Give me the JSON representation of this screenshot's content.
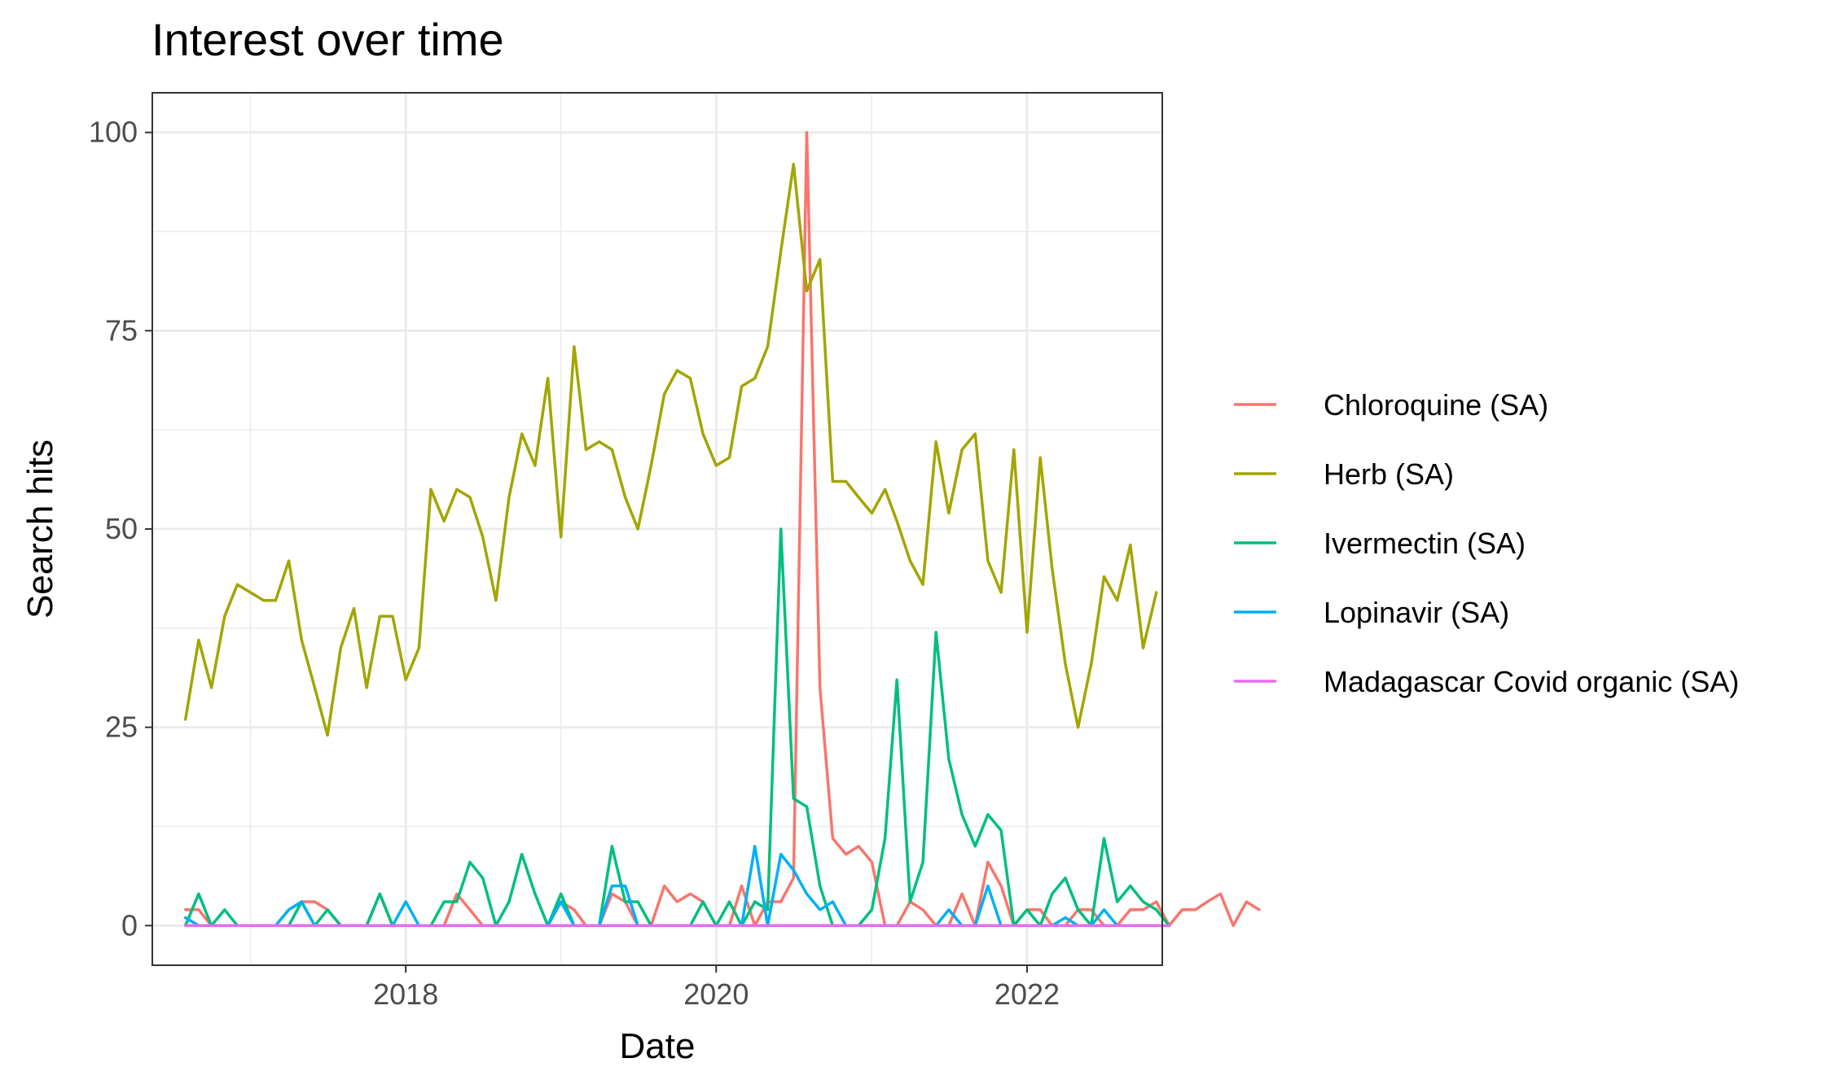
{
  "chart_data": {
    "type": "line",
    "title": "Interest over time",
    "xlabel": "Date",
    "ylabel": "Search hits",
    "xlim": [
      "2016-05-15",
      "2022-11-15"
    ],
    "ylim": [
      -5,
      105
    ],
    "x_ticks": [
      "2018-01-01",
      "2020-01-01",
      "2022-01-01"
    ],
    "x_tick_labels": [
      "2018",
      "2020",
      "2022"
    ],
    "y_ticks": [
      0,
      25,
      50,
      75,
      100
    ],
    "y_tick_labels": [
      "0",
      "25",
      "50",
      "75",
      "100"
    ],
    "grid": true,
    "legend_position": "right",
    "x_start": "2016-08",
    "x_step": "month",
    "series": [
      {
        "name": "Chloroquine (SA)",
        "color": "#F8766D",
        "values": [
          2,
          2,
          0,
          0,
          0,
          0,
          0,
          0,
          2,
          3,
          3,
          2,
          0,
          0,
          0,
          4,
          0,
          0,
          0,
          0,
          0,
          4,
          2,
          0,
          0,
          0,
          0,
          0,
          0,
          3,
          2,
          0,
          0,
          4,
          3,
          0,
          0,
          5,
          3,
          4,
          3,
          0,
          0,
          5,
          0,
          3,
          3,
          6,
          100,
          30,
          11,
          9,
          10,
          8,
          0,
          0,
          3,
          2,
          0,
          0,
          4,
          0,
          8,
          5,
          0,
          2,
          2,
          0,
          0,
          2,
          2,
          0,
          0,
          2,
          2,
          3,
          0,
          2,
          2,
          3,
          4,
          0,
          3,
          2
        ]
      },
      {
        "name": "Herb (SA)",
        "color": "#A3A500",
        "values": [
          26,
          36,
          30,
          39,
          43,
          42,
          41,
          41,
          46,
          36,
          30,
          24,
          35,
          40,
          30,
          39,
          39,
          31,
          35,
          55,
          51,
          55,
          54,
          49,
          41,
          54,
          62,
          58,
          69,
          49,
          73,
          60,
          61,
          60,
          54,
          50,
          58,
          67,
          70,
          69,
          62,
          58,
          59,
          68,
          69,
          73,
          85,
          96,
          80,
          84,
          56,
          56,
          54,
          52,
          55,
          51,
          46,
          43,
          61,
          52,
          60,
          62,
          46,
          42,
          60,
          37,
          59,
          45,
          33,
          25,
          33,
          44,
          41,
          48,
          35,
          42
        ]
      },
      {
        "name": "Ivermectin (SA)",
        "color": "#00BF7D",
        "values": [
          0,
          4,
          0,
          2,
          0,
          0,
          0,
          0,
          0,
          3,
          0,
          2,
          0,
          0,
          0,
          4,
          0,
          0,
          0,
          0,
          3,
          3,
          8,
          6,
          0,
          3,
          9,
          4,
          0,
          4,
          0,
          0,
          0,
          10,
          3,
          3,
          0,
          0,
          0,
          0,
          3,
          0,
          3,
          0,
          3,
          2,
          50,
          16,
          15,
          5,
          0,
          0,
          0,
          2,
          11,
          31,
          3,
          8,
          37,
          21,
          14,
          10,
          14,
          12,
          0,
          2,
          0,
          4,
          6,
          2,
          0,
          11,
          3,
          5,
          3,
          2,
          0
        ]
      },
      {
        "name": "Lopinavir (SA)",
        "color": "#00B0F6",
        "values": [
          1,
          0,
          0,
          0,
          0,
          0,
          0,
          0,
          2,
          3,
          0,
          0,
          0,
          0,
          0,
          0,
          0,
          3,
          0,
          0,
          0,
          0,
          0,
          0,
          0,
          0,
          0,
          0,
          0,
          3,
          0,
          0,
          0,
          5,
          5,
          0,
          0,
          0,
          0,
          0,
          0,
          0,
          0,
          0,
          10,
          0,
          9,
          7,
          4,
          2,
          3,
          0,
          0,
          0,
          0,
          0,
          0,
          0,
          0,
          2,
          0,
          0,
          5,
          0,
          0,
          0,
          0,
          0,
          1,
          0,
          0,
          2,
          0,
          0,
          0,
          0
        ]
      },
      {
        "name": "Madagascar Covid organic (SA)",
        "color": "#E76BF3",
        "values": [
          0,
          0,
          0,
          0,
          0,
          0,
          0,
          0,
          0,
          0,
          0,
          0,
          0,
          0,
          0,
          0,
          0,
          0,
          0,
          0,
          0,
          0,
          0,
          0,
          0,
          0,
          0,
          0,
          0,
          0,
          0,
          0,
          0,
          0,
          0,
          0,
          0,
          0,
          0,
          0,
          0,
          0,
          0,
          0,
          0,
          0,
          0,
          0,
          0,
          0,
          0,
          0,
          0,
          0,
          0,
          0,
          0,
          0,
          0,
          0,
          0,
          0,
          0,
          0,
          0,
          0,
          0,
          0,
          0,
          0,
          0,
          0,
          0,
          0,
          0,
          0,
          0
        ]
      }
    ]
  }
}
